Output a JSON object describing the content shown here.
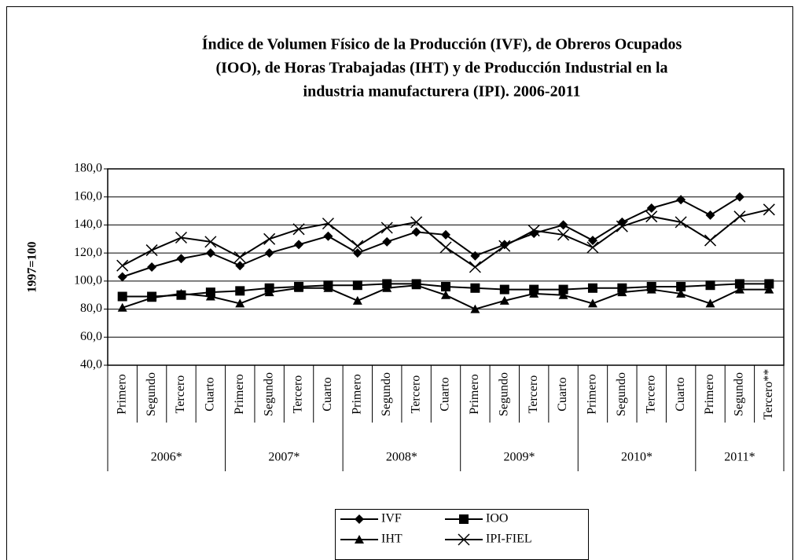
{
  "chart_data": {
    "type": "line",
    "title": [
      "Índice de Volumen Físico de la Producción (IVF), de Obreros Ocupados",
      "(IOO), de Horas Trabajadas (IHT) y de Producción Industrial en la",
      "industria manufacturera (IPI). 2006-2011"
    ],
    "y_label": "1997=100",
    "categories": [
      "Primero",
      "Segundo",
      "Tercero",
      "Cuarto",
      "Primero",
      "Segundo",
      "Tercero",
      "Cuarto",
      "Primero",
      "Segundo",
      "Tercero",
      "Cuarto",
      "Primero",
      "Segundo",
      "Tercero",
      "Cuarto",
      "Primero",
      "Segundo",
      "Tercero",
      "Cuarto",
      "Primero",
      "Segundo",
      "Tercero**"
    ],
    "x_groups": [
      {
        "label": "2006*",
        "count": 4
      },
      {
        "label": "2007*",
        "count": 4
      },
      {
        "label": "2008*",
        "count": 4
      },
      {
        "label": "2009*",
        "count": 4
      },
      {
        "label": "2010*",
        "count": 4
      },
      {
        "label": "2011*",
        "count": 3
      }
    ],
    "series": [
      {
        "name": "IVF",
        "color": "#000000",
        "marker": "diamond",
        "values": [
          103,
          110,
          116,
          120,
          111,
          120,
          126,
          132,
          120,
          128,
          135,
          133,
          118,
          126,
          134,
          140,
          129,
          142,
          152,
          158,
          147,
          160,
          null
        ]
      },
      {
        "name": "IOO",
        "color": "#000000",
        "marker": "square",
        "values": [
          89,
          89,
          90,
          92,
          93,
          95,
          96,
          97,
          97,
          98,
          98,
          96,
          95,
          94,
          94,
          94,
          95,
          95,
          96,
          96,
          97,
          98,
          98
        ]
      },
      {
        "name": "IHT",
        "color": "#000000",
        "marker": "triangle",
        "values": [
          81,
          88,
          91,
          89,
          84,
          92,
          95,
          95,
          86,
          95,
          97,
          90,
          80,
          86,
          91,
          90,
          84,
          92,
          94,
          91,
          84,
          94,
          94
        ]
      },
      {
        "name": "IPI-FIEL",
        "color": "#000000",
        "marker": "x",
        "values": [
          111,
          122,
          131,
          128,
          117,
          130,
          137,
          141,
          125,
          138,
          142,
          124,
          110,
          125,
          136,
          133,
          124,
          139,
          146,
          142,
          129,
          146,
          151
        ]
      }
    ],
    "ylim": [
      40,
      180
    ],
    "yticks": [
      {
        "value": 40,
        "label": "40,0"
      },
      {
        "value": 60,
        "label": "60,0"
      },
      {
        "value": 80,
        "label": "80,0"
      },
      {
        "value": 100,
        "label": "100,0"
      },
      {
        "value": 120,
        "label": "120,0"
      },
      {
        "value": 140,
        "label": "140,0"
      },
      {
        "value": 160,
        "label": "160,0"
      },
      {
        "value": 180,
        "label": "180,0"
      }
    ],
    "grid": true,
    "legend": "bottom"
  }
}
